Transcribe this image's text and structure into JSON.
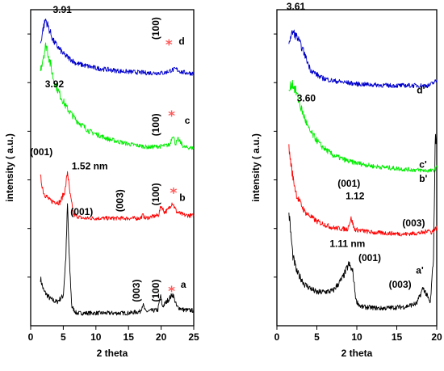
{
  "colors": {
    "a": "#000000",
    "b": "#ff0000",
    "c": "#00ee00",
    "d": "#0000cc",
    "star": "#ff5a5a"
  },
  "chart_data": [
    {
      "type": "line",
      "panel": "left",
      "xlabel": "2 theta",
      "ylabel": "intensity ( a.u.)",
      "xlim": [
        0,
        25
      ],
      "xticks": [
        "0",
        "5",
        "10",
        "15",
        "20",
        "25"
      ],
      "yticks": "unlabeled",
      "series": [
        {
          "name": "a",
          "color": "#000000",
          "offset": 0.02,
          "points": [
            [
              1.5,
              0.13
            ],
            [
              2.0,
              0.09
            ],
            [
              3.0,
              0.065
            ],
            [
              4.0,
              0.055
            ],
            [
              5.0,
              0.075
            ],
            [
              5.4,
              0.2
            ],
            [
              5.65,
              0.365
            ],
            [
              5.9,
              0.2
            ],
            [
              6.3,
              0.04
            ],
            [
              7,
              0.02
            ],
            [
              10,
              0.02
            ],
            [
              15,
              0.02
            ],
            [
              16.8,
              0.025
            ],
            [
              17.2,
              0.048
            ],
            [
              17.6,
              0.025
            ],
            [
              19.5,
              0.03
            ],
            [
              19.9,
              0.075
            ],
            [
              20.2,
              0.04
            ],
            [
              21,
              0.06
            ],
            [
              21.8,
              0.08
            ],
            [
              22.4,
              0.04
            ],
            [
              23.5,
              0.03
            ],
            [
              25,
              0.028
            ]
          ]
        },
        {
          "name": "b",
          "color": "#ff0000",
          "offset": 0.33,
          "points": [
            [
              1.5,
              0.14
            ],
            [
              2.0,
              0.09
            ],
            [
              3.0,
              0.065
            ],
            [
              4.5,
              0.06
            ],
            [
              5.3,
              0.1
            ],
            [
              5.65,
              0.16
            ],
            [
              6.0,
              0.09
            ],
            [
              6.6,
              0.02
            ],
            [
              8,
              0.01
            ],
            [
              12,
              0.01
            ],
            [
              16.8,
              0.01
            ],
            [
              17.2,
              0.02
            ],
            [
              17.6,
              0.01
            ],
            [
              19.6,
              0.02
            ],
            [
              20.0,
              0.05
            ],
            [
              20.5,
              0.03
            ],
            [
              21.0,
              0.035
            ],
            [
              21.7,
              0.06
            ],
            [
              22.4,
              0.03
            ],
            [
              23.5,
              0.02
            ],
            [
              25,
              0.018
            ]
          ]
        },
        {
          "name": "c",
          "color": "#00ee00",
          "offset": 0.55,
          "points": [
            [
              1.5,
              0.26
            ],
            [
              2.0,
              0.31
            ],
            [
              2.4,
              0.34
            ],
            [
              2.9,
              0.29
            ],
            [
              3.5,
              0.23
            ],
            [
              4.5,
              0.18
            ],
            [
              5.5,
              0.14
            ],
            [
              7,
              0.1
            ],
            [
              9,
              0.065
            ],
            [
              12,
              0.04
            ],
            [
              15,
              0.025
            ],
            [
              18,
              0.015
            ],
            [
              20,
              0.018
            ],
            [
              21.3,
              0.022
            ],
            [
              21.8,
              0.055
            ],
            [
              22.2,
              0.025
            ],
            [
              22.6,
              0.04
            ],
            [
              23.5,
              0.015
            ],
            [
              25,
              0.012
            ]
          ]
        },
        {
          "name": "d",
          "color": "#0000cc",
          "offset": 0.77,
          "points": [
            [
              1.5,
              0.12
            ],
            [
              1.9,
              0.17
            ],
            [
              2.3,
              0.2
            ],
            [
              2.8,
              0.17
            ],
            [
              3.5,
              0.13
            ],
            [
              5,
              0.09
            ],
            [
              7,
              0.06
            ],
            [
              10,
              0.045
            ],
            [
              14,
              0.035
            ],
            [
              18,
              0.03
            ],
            [
              20.5,
              0.03
            ],
            [
              21.5,
              0.038
            ],
            [
              22.3,
              0.042
            ],
            [
              23.2,
              0.032
            ],
            [
              25,
              0.028
            ]
          ]
        }
      ],
      "annotations": [
        {
          "text": "3.91",
          "x": 3.4,
          "y": 0.99
        },
        {
          "text": "3.92",
          "x": 2.2,
          "y": 0.755
        },
        {
          "text": "(001)",
          "x": -0.1,
          "y": 0.54
        },
        {
          "text": "1.52 nm",
          "x": 6.3,
          "y": 0.495
        },
        {
          "text": "(001)",
          "x": 6.1,
          "y": 0.35
        },
        {
          "text": "(003)",
          "x": 14.2,
          "y": 0.36,
          "rotate": -90
        },
        {
          "text": "(100)",
          "x": 19.7,
          "y": 0.38,
          "rotate": -90
        },
        {
          "text": "(100)",
          "x": 19.7,
          "y": 0.6,
          "rotate": -90
        },
        {
          "text": "(100)",
          "x": 19.7,
          "y": 0.905,
          "rotate": -90
        },
        {
          "text": "(003)",
          "x": 16.7,
          "y": 0.075,
          "rotate": -90
        },
        {
          "text": "(100)",
          "x": 19.7,
          "y": 0.075,
          "rotate": -90
        },
        {
          "text": "a",
          "x": 23.0,
          "y": 0.12
        },
        {
          "text": "b",
          "x": 22.8,
          "y": 0.395
        },
        {
          "text": "c",
          "x": 23.6,
          "y": 0.64
        },
        {
          "text": "d",
          "x": 22.7,
          "y": 0.89
        }
      ],
      "markers": [
        {
          "symbol": "*",
          "x": 21.6,
          "y": 0.095
        },
        {
          "symbol": "*",
          "x": 21.9,
          "y": 0.405
        },
        {
          "symbol": "*",
          "x": 21.6,
          "y": 0.65
        },
        {
          "symbol": "*",
          "x": 21.2,
          "y": 0.875
        }
      ]
    },
    {
      "type": "line",
      "panel": "right",
      "xlabel": "2 theta",
      "ylabel": "intensity ( a.u.)",
      "xlim": [
        0,
        20
      ],
      "xticks": [
        "0",
        "5",
        "10",
        "15",
        "20"
      ],
      "yticks": "unlabeled",
      "series": [
        {
          "name": "a'",
          "color": "#000000",
          "offset": 0.02,
          "points": [
            [
              1.5,
              0.34
            ],
            [
              2.0,
              0.2
            ],
            [
              2.5,
              0.15
            ],
            [
              3.5,
              0.11
            ],
            [
              5,
              0.085
            ],
            [
              7,
              0.09
            ],
            [
              8.2,
              0.13
            ],
            [
              9.0,
              0.175
            ],
            [
              9.5,
              0.15
            ],
            [
              9.9,
              0.06
            ],
            [
              10.5,
              0.04
            ],
            [
              13,
              0.035
            ],
            [
              16,
              0.04
            ],
            [
              17.5,
              0.05
            ],
            [
              18.3,
              0.1
            ],
            [
              18.7,
              0.08
            ],
            [
              19.2,
              0.05
            ],
            [
              19.6,
              0.2
            ],
            [
              19.8,
              0.55
            ],
            [
              20,
              0.6
            ]
          ]
        },
        {
          "name": "b'",
          "color": "#ff0000",
          "offset": 0.27,
          "points": [
            [
              1.5,
              0.29
            ],
            [
              2.0,
              0.2
            ],
            [
              2.5,
              0.14
            ],
            [
              3.5,
              0.09
            ],
            [
              5,
              0.06
            ],
            [
              7,
              0.04
            ],
            [
              8.8,
              0.035
            ],
            [
              9.3,
              0.07
            ],
            [
              9.7,
              0.035
            ],
            [
              12,
              0.025
            ],
            [
              16,
              0.02
            ],
            [
              18.5,
              0.025
            ],
            [
              18.9,
              0.035
            ],
            [
              19.3,
              0.025
            ],
            [
              20,
              0.04
            ]
          ]
        },
        {
          "name": "c'",
          "color": "#00ee00",
          "offset": 0.47,
          "points": [
            [
              1.5,
              0.27
            ],
            [
              1.9,
              0.3
            ],
            [
              2.4,
              0.27
            ],
            [
              3.0,
              0.22
            ],
            [
              4.0,
              0.15
            ],
            [
              5.5,
              0.1
            ],
            [
              7,
              0.07
            ],
            [
              9,
              0.05
            ],
            [
              12,
              0.035
            ],
            [
              16,
              0.025
            ],
            [
              19.5,
              0.02
            ],
            [
              20,
              0.03
            ]
          ]
        },
        {
          "name": "d'",
          "color": "#0000cc",
          "offset": 0.73,
          "points": [
            [
              1.5,
              0.17
            ],
            [
              2.0,
              0.2
            ],
            [
              2.6,
              0.18
            ],
            [
              3.3,
              0.14
            ],
            [
              4.2,
              0.08
            ],
            [
              5.5,
              0.055
            ],
            [
              7,
              0.045
            ],
            [
              10,
              0.035
            ],
            [
              14,
              0.03
            ],
            [
              19,
              0.03
            ],
            [
              20,
              0.045
            ]
          ]
        }
      ],
      "annotations": [
        {
          "text": "3.61",
          "x": 1.2,
          "y": 1.0
        },
        {
          "text": "3.60",
          "x": 2.5,
          "y": 0.71
        },
        {
          "text": "d'",
          "x": 17.5,
          "y": 0.735
        },
        {
          "text": "c'",
          "x": 17.8,
          "y": 0.5
        },
        {
          "text": "b'",
          "x": 17.8,
          "y": 0.455
        },
        {
          "text": "(001)",
          "x": 7.6,
          "y": 0.44
        },
        {
          "text": "1.12",
          "x": 8.6,
          "y": 0.4
        },
        {
          "text": "(003)",
          "x": 15.7,
          "y": 0.315
        },
        {
          "text": "1.11 nm",
          "x": 6.6,
          "y": 0.25
        },
        {
          "text": "(001)",
          "x": 10.2,
          "y": 0.205
        },
        {
          "text": "(003)",
          "x": 14.0,
          "y": 0.12
        },
        {
          "text": "a'",
          "x": 17.4,
          "y": 0.165
        }
      ]
    }
  ]
}
